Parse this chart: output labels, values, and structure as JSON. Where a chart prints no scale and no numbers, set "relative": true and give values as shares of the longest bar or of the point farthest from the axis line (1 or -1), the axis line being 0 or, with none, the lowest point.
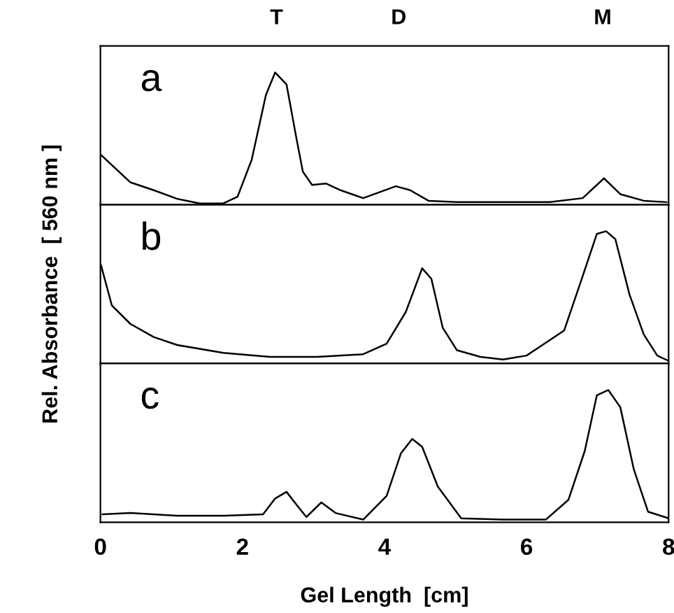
{
  "chart_data": [
    {
      "type": "line",
      "relative": true,
      "xlim": [
        0,
        8
      ],
      "xticks": [
        0,
        2,
        4,
        6,
        8
      ],
      "tick_labels": false,
      "annotations": [
        "a",
        "T",
        "D",
        "M"
      ],
      "series": [
        {
          "color": "#000000",
          "x": [
            0.0,
            0.42,
            0.75,
            1.08,
            1.4,
            1.73,
            1.93,
            2.13,
            2.33,
            2.46,
            2.62,
            2.75,
            2.85,
            2.98,
            3.18,
            3.38,
            3.7,
            4.16,
            4.36,
            4.62,
            5.02,
            5.67,
            6.33,
            6.79,
            7.09,
            7.32,
            7.65,
            7.97
          ],
          "values": [
            0.38,
            0.17,
            0.11,
            0.045,
            0.01,
            0.01,
            0.06,
            0.34,
            0.83,
            1.0,
            0.91,
            0.53,
            0.25,
            0.15,
            0.16,
            0.11,
            0.05,
            0.14,
            0.11,
            0.03,
            0.02,
            0.02,
            0.02,
            0.05,
            0.2,
            0.08,
            0.03,
            0.02
          ]
        }
      ]
    },
    {
      "type": "line",
      "relative": true,
      "xlim": [
        0,
        8
      ],
      "xticks": [
        0,
        2,
        4,
        6,
        8
      ],
      "tick_labels": false,
      "ylabel": "Rel. Absorbance  [ 560 nm ]",
      "annotations": [
        "b"
      ],
      "series": [
        {
          "color": "#000000",
          "x": [
            0.01,
            0.16,
            0.42,
            0.75,
            1.08,
            1.73,
            2.39,
            3.05,
            3.7,
            4.03,
            4.3,
            4.53,
            4.66,
            4.82,
            5.02,
            5.35,
            5.67,
            6.0,
            6.53,
            6.79,
            6.99,
            7.12,
            7.25,
            7.45,
            7.65,
            7.84,
            8.0
          ],
          "values": [
            0.74,
            0.44,
            0.3,
            0.2,
            0.14,
            0.08,
            0.05,
            0.05,
            0.07,
            0.15,
            0.39,
            0.72,
            0.64,
            0.27,
            0.1,
            0.05,
            0.03,
            0.06,
            0.25,
            0.66,
            0.98,
            1.0,
            0.94,
            0.52,
            0.22,
            0.06,
            0.02
          ]
        }
      ]
    },
    {
      "type": "line",
      "relative": true,
      "xlim": [
        0,
        8
      ],
      "xticks": [
        0,
        2,
        4,
        6,
        8
      ],
      "tick_labels": "x",
      "xlabel": "Gel Length  [cm]",
      "annotations": [
        "c"
      ],
      "series": [
        {
          "color": "#000000",
          "x": [
            0.03,
            0.42,
            1.08,
            1.73,
            2.29,
            2.46,
            2.62,
            2.78,
            2.9,
            3.11,
            3.31,
            3.7,
            4.03,
            4.23,
            4.39,
            4.53,
            4.75,
            5.08,
            5.67,
            6.27,
            6.59,
            6.82,
            6.99,
            7.15,
            7.32,
            7.51,
            7.71,
            8.0
          ],
          "values": [
            0.06,
            0.07,
            0.05,
            0.05,
            0.06,
            0.18,
            0.23,
            0.12,
            0.04,
            0.15,
            0.07,
            0.02,
            0.2,
            0.52,
            0.63,
            0.57,
            0.27,
            0.03,
            0.02,
            0.02,
            0.17,
            0.54,
            0.96,
            1.0,
            0.87,
            0.4,
            0.08,
            0.03
          ]
        }
      ]
    }
  ]
}
